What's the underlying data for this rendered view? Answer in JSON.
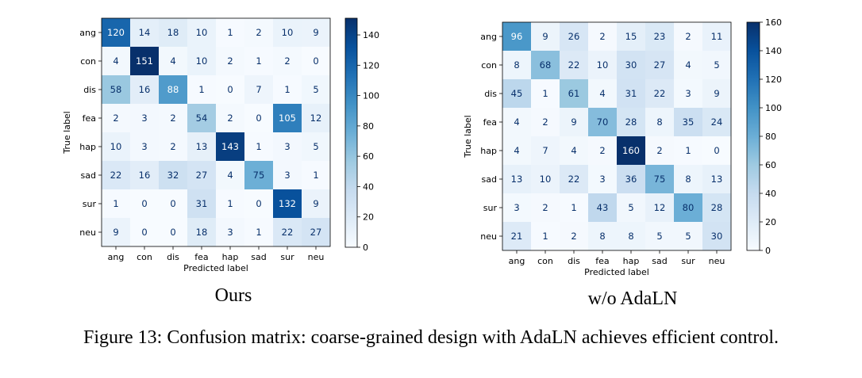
{
  "figure_caption": "Figure 13: Confusion matrix: coarse-grained design with AdaLN achieves efficient control.",
  "panels": [
    {
      "caption": "Ours"
    },
    {
      "caption": "w/o AdaLN"
    }
  ],
  "colormap": {
    "name": "Blues",
    "low": "#f7fbff",
    "high": "#08306b"
  },
  "chart_data": [
    {
      "type": "heatmap",
      "title": "",
      "caption": "Ours",
      "xlabel": "Predicted label",
      "ylabel": "True label",
      "x_categories": [
        "ang",
        "con",
        "dis",
        "fea",
        "hap",
        "sad",
        "sur",
        "neu"
      ],
      "y_categories": [
        "ang",
        "con",
        "dis",
        "fea",
        "hap",
        "sad",
        "sur",
        "neu"
      ],
      "values": [
        [
          120,
          14,
          18,
          10,
          1,
          2,
          10,
          9
        ],
        [
          4,
          151,
          4,
          10,
          2,
          1,
          2,
          0
        ],
        [
          58,
          16,
          88,
          1,
          0,
          7,
          1,
          5
        ],
        [
          2,
          3,
          2,
          54,
          2,
          0,
          105,
          12
        ],
        [
          10,
          3,
          2,
          13,
          143,
          1,
          3,
          5
        ],
        [
          22,
          16,
          32,
          27,
          4,
          75,
          3,
          1
        ],
        [
          1,
          0,
          0,
          31,
          1,
          0,
          132,
          9
        ],
        [
          9,
          0,
          0,
          18,
          3,
          1,
          22,
          27
        ]
      ],
      "colorbar": {
        "range": [
          0,
          151
        ],
        "ticks": [
          0,
          20,
          40,
          60,
          80,
          100,
          120,
          140
        ]
      }
    },
    {
      "type": "heatmap",
      "title": "",
      "caption": "w/o AdaLN",
      "xlabel": "Predicted label",
      "ylabel": "True label",
      "x_categories": [
        "ang",
        "con",
        "dis",
        "fea",
        "hap",
        "sad",
        "sur",
        "neu"
      ],
      "y_categories": [
        "ang",
        "con",
        "dis",
        "fea",
        "hap",
        "sad",
        "sur",
        "neu"
      ],
      "values": [
        [
          96,
          9,
          26,
          2,
          15,
          23,
          2,
          11
        ],
        [
          8,
          68,
          22,
          10,
          30,
          27,
          4,
          5
        ],
        [
          45,
          1,
          61,
          4,
          31,
          22,
          3,
          9
        ],
        [
          4,
          2,
          9,
          70,
          28,
          8,
          35,
          24
        ],
        [
          4,
          7,
          4,
          2,
          160,
          2,
          1,
          0
        ],
        [
          13,
          10,
          22,
          3,
          36,
          75,
          8,
          13
        ],
        [
          3,
          2,
          1,
          43,
          5,
          12,
          80,
          28
        ],
        [
          21,
          1,
          2,
          8,
          8,
          5,
          5,
          30
        ]
      ],
      "colorbar": {
        "range": [
          0,
          160
        ],
        "ticks": [
          0,
          20,
          40,
          60,
          80,
          100,
          120,
          140,
          160
        ]
      }
    }
  ]
}
